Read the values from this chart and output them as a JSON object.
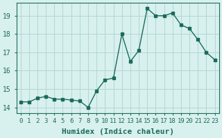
{
  "x": [
    0,
    1,
    2,
    3,
    4,
    5,
    6,
    7,
    8,
    9,
    10,
    11,
    12,
    13,
    14,
    15,
    16,
    17,
    18,
    19,
    20,
    21,
    22,
    23
  ],
  "y": [
    14.3,
    14.3,
    14.5,
    14.6,
    14.45,
    14.45,
    14.4,
    14.35,
    14.0,
    14.9,
    15.5,
    15.6,
    18.0,
    16.5,
    17.1,
    19.4,
    19.0,
    19.0,
    19.15,
    18.5,
    18.3,
    17.7,
    17.0,
    16.6
  ],
  "line_color": "#1a6b5a",
  "bg_color": "#d8f0ee",
  "grid_color": "#b0d8d4",
  "ylabel_ticks": [
    14,
    15,
    16,
    17,
    18,
    19
  ],
  "xlabel": "Humidex (Indice chaleur)",
  "xlim": [
    -0.5,
    23.5
  ],
  "ylim": [
    13.7,
    19.7
  ],
  "tick_label_color": "#1a6b5a",
  "axis_color": "#1a6b5a",
  "xlabel_fontsize": 8,
  "tick_fontsize": 7
}
